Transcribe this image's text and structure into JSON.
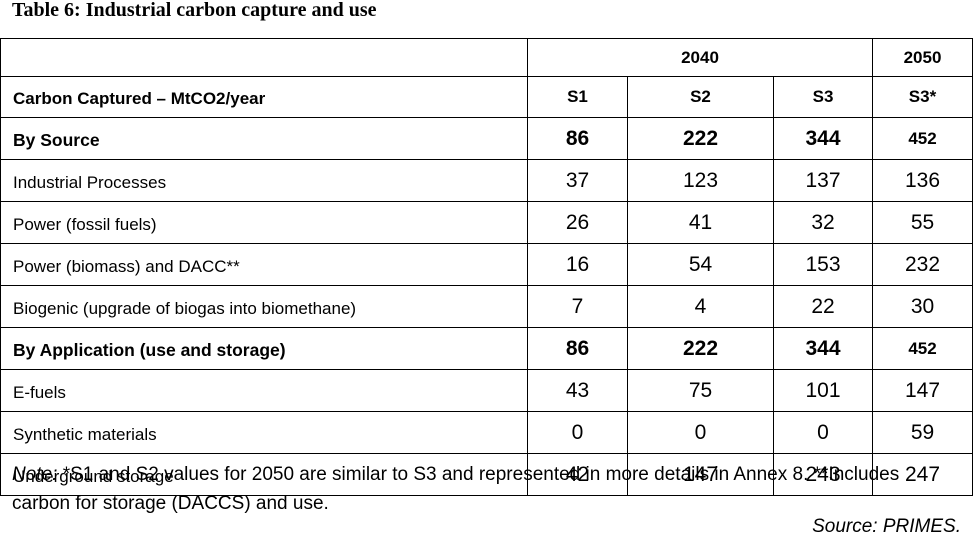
{
  "caption": "Table 6: Industrial carbon capture and use",
  "table": {
    "year_headers": [
      "2040",
      "2050"
    ],
    "row_header_label": "Carbon Captured – MtCO2/year",
    "scenarios": [
      "S1",
      "S2",
      "S3",
      "S3*"
    ],
    "rows": [
      {
        "label": "By Source",
        "values": [
          "86",
          "222",
          "344",
          "452"
        ]
      },
      {
        "label": "Industrial Processes",
        "values": [
          "37",
          "123",
          "137",
          "136"
        ]
      },
      {
        "label": "Power (fossil fuels)",
        "values": [
          "26",
          "41",
          "32",
          "55"
        ]
      },
      {
        "label": "Power (biomass) and DACC**",
        "values": [
          "16",
          "54",
          "153",
          "232"
        ]
      },
      {
        "label": "Biogenic (upgrade of biogas into biomethane)",
        "values": [
          "7",
          "4",
          "22",
          "30"
        ]
      },
      {
        "label": "By Application (use and storage)",
        "values": [
          "86",
          "222",
          "344",
          "452"
        ]
      },
      {
        "label": "E-fuels",
        "values": [
          "43",
          "75",
          "101",
          "147"
        ]
      },
      {
        "label": "Synthetic materials",
        "values": [
          "0",
          "0",
          "0",
          "59"
        ]
      },
      {
        "label": "Underground storage",
        "values": [
          "42",
          "147",
          "243",
          "247"
        ]
      }
    ]
  },
  "note": {
    "label": "Note:",
    "text": " *S1 and S2 values for 2050 are similar to S3 and represented in more details in Annex 8. **Includes carbon for storage (DACCS) and use."
  },
  "source": "Source: PRIMES."
}
